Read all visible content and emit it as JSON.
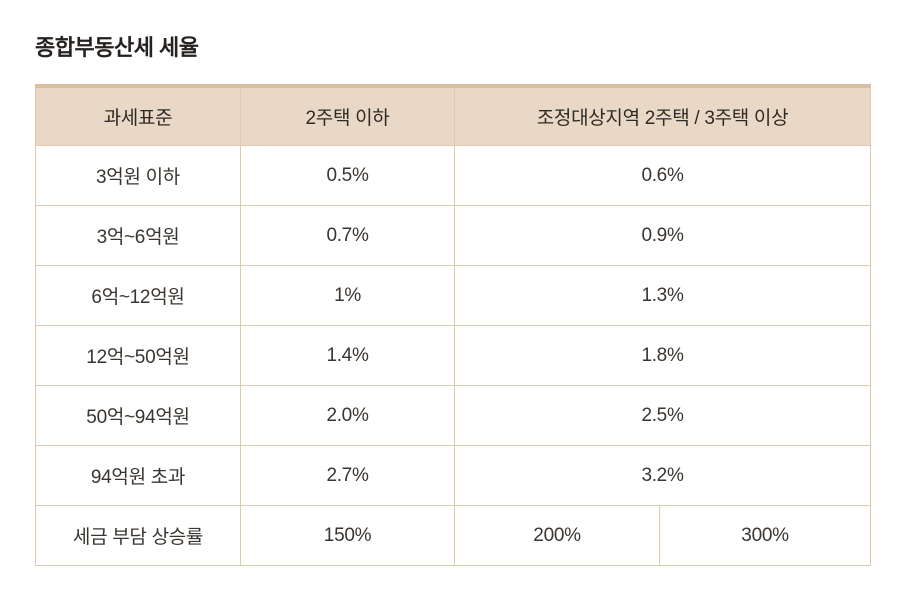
{
  "page": {
    "title": "종합부동산세 세율",
    "background_color": "#ffffff"
  },
  "style_colors": {
    "header_background": "#e9d8c6",
    "header_top_border": "#d8bfa2",
    "grid_border": "#e0c9ae",
    "header_separator": "#f4e9db",
    "text": "#3a3530",
    "title_text": "#262220"
  },
  "chart_data": {
    "type": "table",
    "title": "종합부동산세 세율",
    "columns": [
      "과세표준",
      "2주택 이하",
      "조정대상지역 2주택 / 3주택 이상"
    ],
    "rows": [
      [
        "3억원 이하",
        "0.5%",
        "0.6%"
      ],
      [
        "3억~6억원",
        "0.7%",
        "0.9%"
      ],
      [
        "6억~12억원",
        "1%",
        "1.3%"
      ],
      [
        "12억~50억원",
        "1.4%",
        "1.8%"
      ],
      [
        "50억~94억원",
        "2.0%",
        "2.5%"
      ],
      [
        "94억원 초과",
        "2.7%",
        "3.2%"
      ],
      [
        "세금 부담 상승률",
        "150%",
        "200%",
        "300%"
      ]
    ],
    "layout_notes": {
      "third_column_spans_two_subcolumns": true,
      "last_row_splits_third_column": true,
      "grid": "on",
      "header_row_shaded": true
    }
  }
}
